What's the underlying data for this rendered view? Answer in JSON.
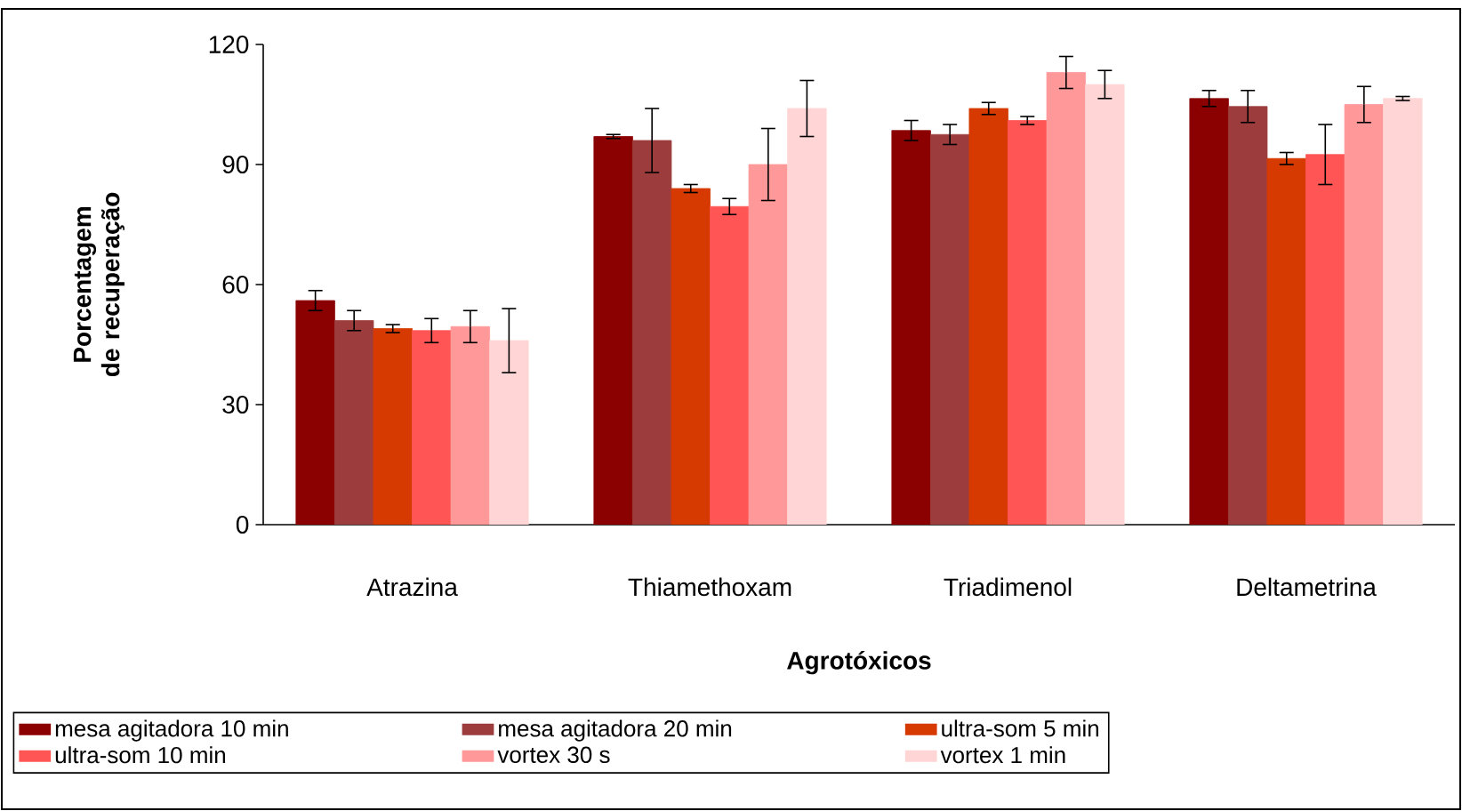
{
  "chart_data": {
    "type": "bar",
    "xlabel": "Agrotóxicos",
    "ylabel": "Porcentagem de recuperação",
    "categories": [
      "Atrazina",
      "Thiamethoxam",
      "Triadimenol",
      "Deltametrina"
    ],
    "ylim": [
      0,
      120
    ],
    "yticks": [
      0,
      30,
      60,
      90,
      120
    ],
    "legend": "bottom",
    "grid": false,
    "series": [
      {
        "name": "mesa agitadora 10 min",
        "color": "#8b0000",
        "values": [
          56,
          97,
          98.5,
          106.5
        ],
        "errors": [
          2.5,
          0.5,
          2.5,
          2
        ]
      },
      {
        "name": "mesa agitadora 20 min",
        "color": "#9c3c3c",
        "values": [
          51,
          96,
          97.5,
          104.5
        ],
        "errors": [
          2.5,
          8,
          2.5,
          4
        ]
      },
      {
        "name": "ultra-som 5 min",
        "color": "#d63a00",
        "values": [
          49,
          84,
          104,
          91.5
        ],
        "errors": [
          1,
          1,
          1.5,
          1.5
        ]
      },
      {
        "name": "ultra-som 10 min",
        "color": "#ff5555",
        "values": [
          48.5,
          79.5,
          101,
          92.5
        ],
        "errors": [
          3,
          2,
          1,
          7.5
        ]
      },
      {
        "name": "vortex 30 s",
        "color": "#ff9999",
        "values": [
          49.5,
          90,
          113,
          105
        ],
        "errors": [
          4,
          9,
          4,
          4.5
        ]
      },
      {
        "name": "vortex 1 min",
        "color": "#ffd5d5",
        "values": [
          46,
          104,
          110,
          106.5
        ],
        "errors": [
          8,
          7,
          3.5,
          0.5
        ]
      }
    ]
  }
}
